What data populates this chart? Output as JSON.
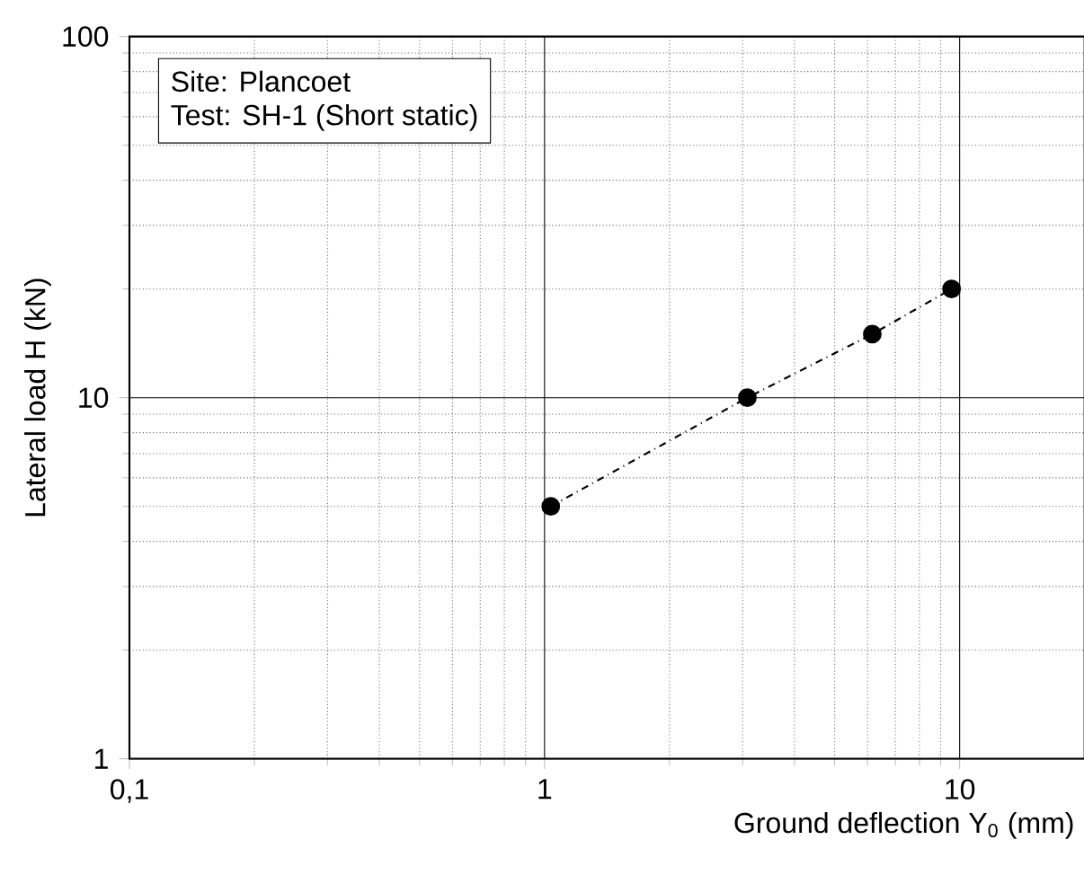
{
  "chart_data": {
    "type": "line",
    "xlabel": "Ground deflection Y$_{0}$ (mm)",
    "ylabel": "Lateral load H (kN)",
    "annotations": [
      "Site: Plancoet",
      "Test: SH-1 (Short static)"
    ],
    "x": [
      1.035,
      3.08,
      6.16,
      9.56
    ],
    "values": [
      5,
      10,
      15,
      20
    ],
    "color": "#000000",
    "marker": "circle",
    "line_style": "dashed",
    "log": "xy",
    "grid": true,
    "xlim": [
      0.1,
      20
    ],
    "ylim": [
      1,
      100
    ],
    "xticks": [
      {
        "value": 0.1,
        "label": "0,1"
      },
      1,
      10
    ],
    "yticks": [
      1,
      10,
      100
    ]
  }
}
